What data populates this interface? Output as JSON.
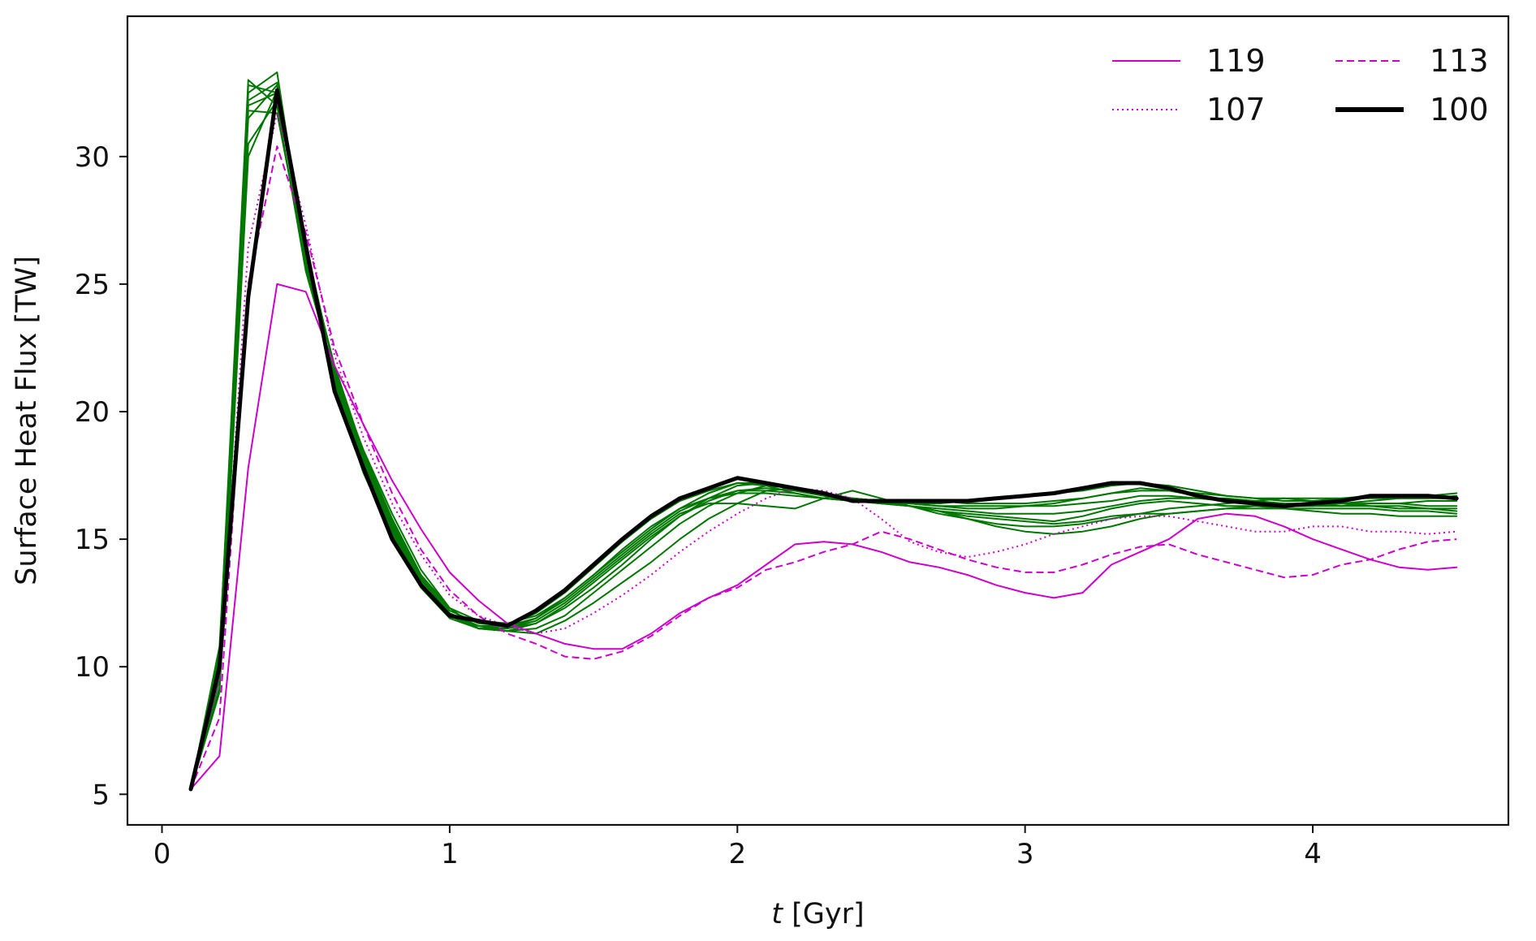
{
  "chart_data": {
    "type": "line",
    "xlabel": {
      "italic": "t",
      "rest": " [Gyr]"
    },
    "ylabel": "Surface Heat Flux [TW]",
    "xlim": [
      -0.12,
      4.68
    ],
    "ylim": [
      3.8,
      35.5
    ],
    "xticks": [
      0,
      1,
      2,
      3,
      4
    ],
    "yticks": [
      5,
      10,
      15,
      20,
      25,
      30
    ],
    "grid": false,
    "legend": {
      "placement": "top-right",
      "columns": 2
    },
    "x": [
      0.1,
      0.2,
      0.3,
      0.4,
      0.5,
      0.6,
      0.7,
      0.8,
      0.9,
      1.0,
      1.1,
      1.2,
      1.3,
      1.4,
      1.5,
      1.6,
      1.7,
      1.8,
      1.9,
      2.0,
      2.1,
      2.2,
      2.3,
      2.4,
      2.5,
      2.6,
      2.7,
      2.8,
      2.9,
      3.0,
      3.1,
      3.2,
      3.3,
      3.4,
      3.5,
      3.6,
      3.7,
      3.8,
      3.9,
      4.0,
      4.1,
      4.2,
      4.3,
      4.4,
      4.5
    ],
    "series": [
      {
        "name": "119",
        "color": "#cc00cc",
        "style": "solid",
        "width": 2,
        "legend": true,
        "values": [
          5.2,
          6.5,
          17.8,
          25.0,
          24.7,
          21.8,
          19.5,
          17.3,
          15.4,
          13.7,
          12.6,
          11.7,
          11.3,
          10.9,
          10.7,
          10.7,
          11.3,
          12.1,
          12.7,
          13.2,
          14.0,
          14.8,
          14.9,
          14.8,
          14.5,
          14.1,
          13.9,
          13.6,
          13.2,
          12.9,
          12.7,
          12.9,
          14.0,
          14.5,
          15.0,
          15.8,
          16.0,
          15.9,
          15.5,
          15.0,
          14.6,
          14.2,
          13.9,
          13.8,
          13.9
        ]
      },
      {
        "name": "113",
        "color": "#cc00cc",
        "style": "dashed",
        "width": 2,
        "legend": true,
        "values": [
          5.2,
          8.0,
          25.0,
          30.4,
          27.0,
          22.5,
          19.5,
          16.8,
          14.6,
          13.0,
          12.0,
          11.3,
          10.9,
          10.4,
          10.3,
          10.6,
          11.2,
          12.0,
          12.7,
          13.1,
          13.8,
          14.1,
          14.5,
          14.8,
          15.3,
          15.0,
          14.6,
          14.2,
          13.9,
          13.7,
          13.7,
          14.0,
          14.4,
          14.7,
          14.8,
          14.4,
          14.1,
          13.8,
          13.5,
          13.6,
          14.0,
          14.2,
          14.6,
          14.9,
          15.0
        ]
      },
      {
        "name": "107",
        "color": "#cc00cc",
        "style": "dotted",
        "width": 2,
        "legend": true,
        "values": [
          5.2,
          9.5,
          26.5,
          31.7,
          27.3,
          22.2,
          19.0,
          16.4,
          14.4,
          12.8,
          12.0,
          11.6,
          11.3,
          11.5,
          12.1,
          12.8,
          13.6,
          14.5,
          15.3,
          16.0,
          16.6,
          17.0,
          16.9,
          16.6,
          15.8,
          14.9,
          14.5,
          14.3,
          14.5,
          14.8,
          15.2,
          15.5,
          15.8,
          15.9,
          15.9,
          15.7,
          15.5,
          15.3,
          15.3,
          15.5,
          15.5,
          15.3,
          15.3,
          15.2,
          15.3
        ]
      },
      {
        "name": "",
        "color": "#007700",
        "style": "solid",
        "width": 2,
        "legend": false,
        "values": [
          5.2,
          10.5,
          33.0,
          32.0,
          25.5,
          21.5,
          18.5,
          16.0,
          13.8,
          12.3,
          11.5,
          11.4,
          11.3,
          11.8,
          12.5,
          13.3,
          14.1,
          15.0,
          15.8,
          16.4,
          16.9,
          17.0,
          16.8,
          16.6,
          16.4,
          16.3,
          16.1,
          15.9,
          15.8,
          15.7,
          15.6,
          15.7,
          15.9,
          16.0,
          16.0,
          16.1,
          16.2,
          16.3,
          16.2,
          16.1,
          16.0,
          16.0,
          15.9,
          15.9,
          15.9
        ]
      },
      {
        "name": "",
        "color": "#007700",
        "style": "solid",
        "width": 2,
        "legend": false,
        "values": [
          5.2,
          10.0,
          32.5,
          33.3,
          26.0,
          21.0,
          17.6,
          15.1,
          13.1,
          12.0,
          11.6,
          11.6,
          12.1,
          12.9,
          13.9,
          14.9,
          15.8,
          16.5,
          16.9,
          17.2,
          17.1,
          16.8,
          16.6,
          16.5,
          16.4,
          16.3,
          16.1,
          15.8,
          15.5,
          15.3,
          15.2,
          15.3,
          15.5,
          15.8,
          16.0,
          16.1,
          16.2,
          16.2,
          16.2,
          16.2,
          16.2,
          16.2,
          16.1,
          16.1,
          16.0
        ]
      },
      {
        "name": "",
        "color": "#007700",
        "style": "solid",
        "width": 2,
        "legend": false,
        "values": [
          5.2,
          9.8,
          32.8,
          32.5,
          25.8,
          21.2,
          18.0,
          15.5,
          13.4,
          12.1,
          11.6,
          11.5,
          11.7,
          12.3,
          13.1,
          14.0,
          15.0,
          15.9,
          16.6,
          17.1,
          17.2,
          17.0,
          16.8,
          16.6,
          16.5,
          16.3,
          16.2,
          16.1,
          16.0,
          16.0,
          16.0,
          16.1,
          16.3,
          16.5,
          16.6,
          16.6,
          16.6,
          16.5,
          16.4,
          16.4,
          16.3,
          16.3,
          16.3,
          16.2,
          16.2
        ]
      },
      {
        "name": "",
        "color": "#007700",
        "style": "solid",
        "width": 2,
        "legend": false,
        "values": [
          5.2,
          9.5,
          32.0,
          32.5,
          26.2,
          21.8,
          18.4,
          15.8,
          13.6,
          12.2,
          11.7,
          11.6,
          11.9,
          12.6,
          13.5,
          14.4,
          15.3,
          16.1,
          16.6,
          16.9,
          16.9,
          16.8,
          16.6,
          16.5,
          16.4,
          16.3,
          16.1,
          16.0,
          15.9,
          15.8,
          15.7,
          15.9,
          16.2,
          16.4,
          16.5,
          16.4,
          16.3,
          16.3,
          16.3,
          16.3,
          16.4,
          16.4,
          16.4,
          16.3,
          16.3
        ]
      },
      {
        "name": "",
        "color": "#007700",
        "style": "solid",
        "width": 2,
        "legend": false,
        "values": [
          5.2,
          10.8,
          31.5,
          32.8,
          25.6,
          21.4,
          18.1,
          15.4,
          13.3,
          12.0,
          11.5,
          11.5,
          11.8,
          12.5,
          13.4,
          14.3,
          15.2,
          16.0,
          16.4,
          16.4,
          16.3,
          16.2,
          16.6,
          16.9,
          16.6,
          16.3,
          16.0,
          15.8,
          15.6,
          15.5,
          15.5,
          15.6,
          15.8,
          16.0,
          16.2,
          16.3,
          16.4,
          16.5,
          16.6,
          16.5,
          16.4,
          16.3,
          16.2,
          16.2,
          16.1
        ]
      },
      {
        "name": "",
        "color": "#007700",
        "style": "solid",
        "width": 2,
        "legend": false,
        "values": [
          5.2,
          9.2,
          30.5,
          32.2,
          26.5,
          21.6,
          18.2,
          15.6,
          13.5,
          12.1,
          11.6,
          11.4,
          11.5,
          12.0,
          12.9,
          13.8,
          14.7,
          15.6,
          16.3,
          16.8,
          17.1,
          17.0,
          16.8,
          16.6,
          16.5,
          16.5,
          16.5,
          16.4,
          16.4,
          16.4,
          16.5,
          16.6,
          16.8,
          16.9,
          16.9,
          16.8,
          16.7,
          16.6,
          16.6,
          16.6,
          16.6,
          16.6,
          16.6,
          16.6,
          16.6
        ]
      },
      {
        "name": "",
        "color": "#007700",
        "style": "solid",
        "width": 2,
        "legend": false,
        "values": [
          5.2,
          10.2,
          31.8,
          31.7,
          25.9,
          21.3,
          17.9,
          15.3,
          13.2,
          12.0,
          11.5,
          11.5,
          11.9,
          12.7,
          13.6,
          14.6,
          15.5,
          16.2,
          16.6,
          16.8,
          16.8,
          16.7,
          16.6,
          16.5,
          16.5,
          16.4,
          16.3,
          16.2,
          16.2,
          16.3,
          16.4,
          16.6,
          16.8,
          17.0,
          16.9,
          16.7,
          16.5,
          16.4,
          16.3,
          16.3,
          16.4,
          16.5,
          16.6,
          16.6,
          16.7
        ]
      },
      {
        "name": "",
        "color": "#007700",
        "style": "solid",
        "width": 2,
        "legend": false,
        "values": [
          5.2,
          9.0,
          30.0,
          32.6,
          26.3,
          21.7,
          18.3,
          15.7,
          13.6,
          12.3,
          11.8,
          11.7,
          12.0,
          12.7,
          13.6,
          14.5,
          15.4,
          16.2,
          16.8,
          17.2,
          17.2,
          16.9,
          16.7,
          16.5,
          16.4,
          16.4,
          16.4,
          16.5,
          16.6,
          16.7,
          16.8,
          16.9,
          17.1,
          17.2,
          17.1,
          16.9,
          16.7,
          16.6,
          16.5,
          16.5,
          16.6,
          16.7,
          16.7,
          16.7,
          16.8
        ]
      },
      {
        "name": "",
        "color": "#007700",
        "style": "solid",
        "width": 2,
        "legend": false,
        "values": [
          5.2,
          10.3,
          32.2,
          32.9,
          26.1,
          21.1,
          17.7,
          15.2,
          13.1,
          11.9,
          11.5,
          11.4,
          11.7,
          12.4,
          13.3,
          14.2,
          15.1,
          15.9,
          16.5,
          16.9,
          17.0,
          16.9,
          16.7,
          16.6,
          16.5,
          16.4,
          16.3,
          16.3,
          16.3,
          16.3,
          16.3,
          16.4,
          16.5,
          16.7,
          16.7,
          16.6,
          16.5,
          16.4,
          16.3,
          16.3,
          16.3,
          16.4,
          16.4,
          16.5,
          16.5
        ]
      },
      {
        "name": "100",
        "color": "#000000",
        "style": "solid",
        "width": 5,
        "legend": true,
        "values": [
          5.2,
          10.0,
          24.5,
          32.6,
          26.5,
          20.8,
          17.8,
          15.0,
          13.2,
          12.0,
          11.8,
          11.6,
          12.2,
          13.0,
          14.0,
          15.0,
          15.9,
          16.6,
          17.0,
          17.4,
          17.2,
          17.0,
          16.8,
          16.5,
          16.5,
          16.5,
          16.5,
          16.5,
          16.6,
          16.7,
          16.8,
          17.0,
          17.2,
          17.2,
          17.0,
          16.7,
          16.5,
          16.4,
          16.3,
          16.4,
          16.5,
          16.7,
          16.7,
          16.7,
          16.6
        ]
      }
    ],
    "legend_order": [
      0,
      1,
      2,
      12
    ]
  }
}
